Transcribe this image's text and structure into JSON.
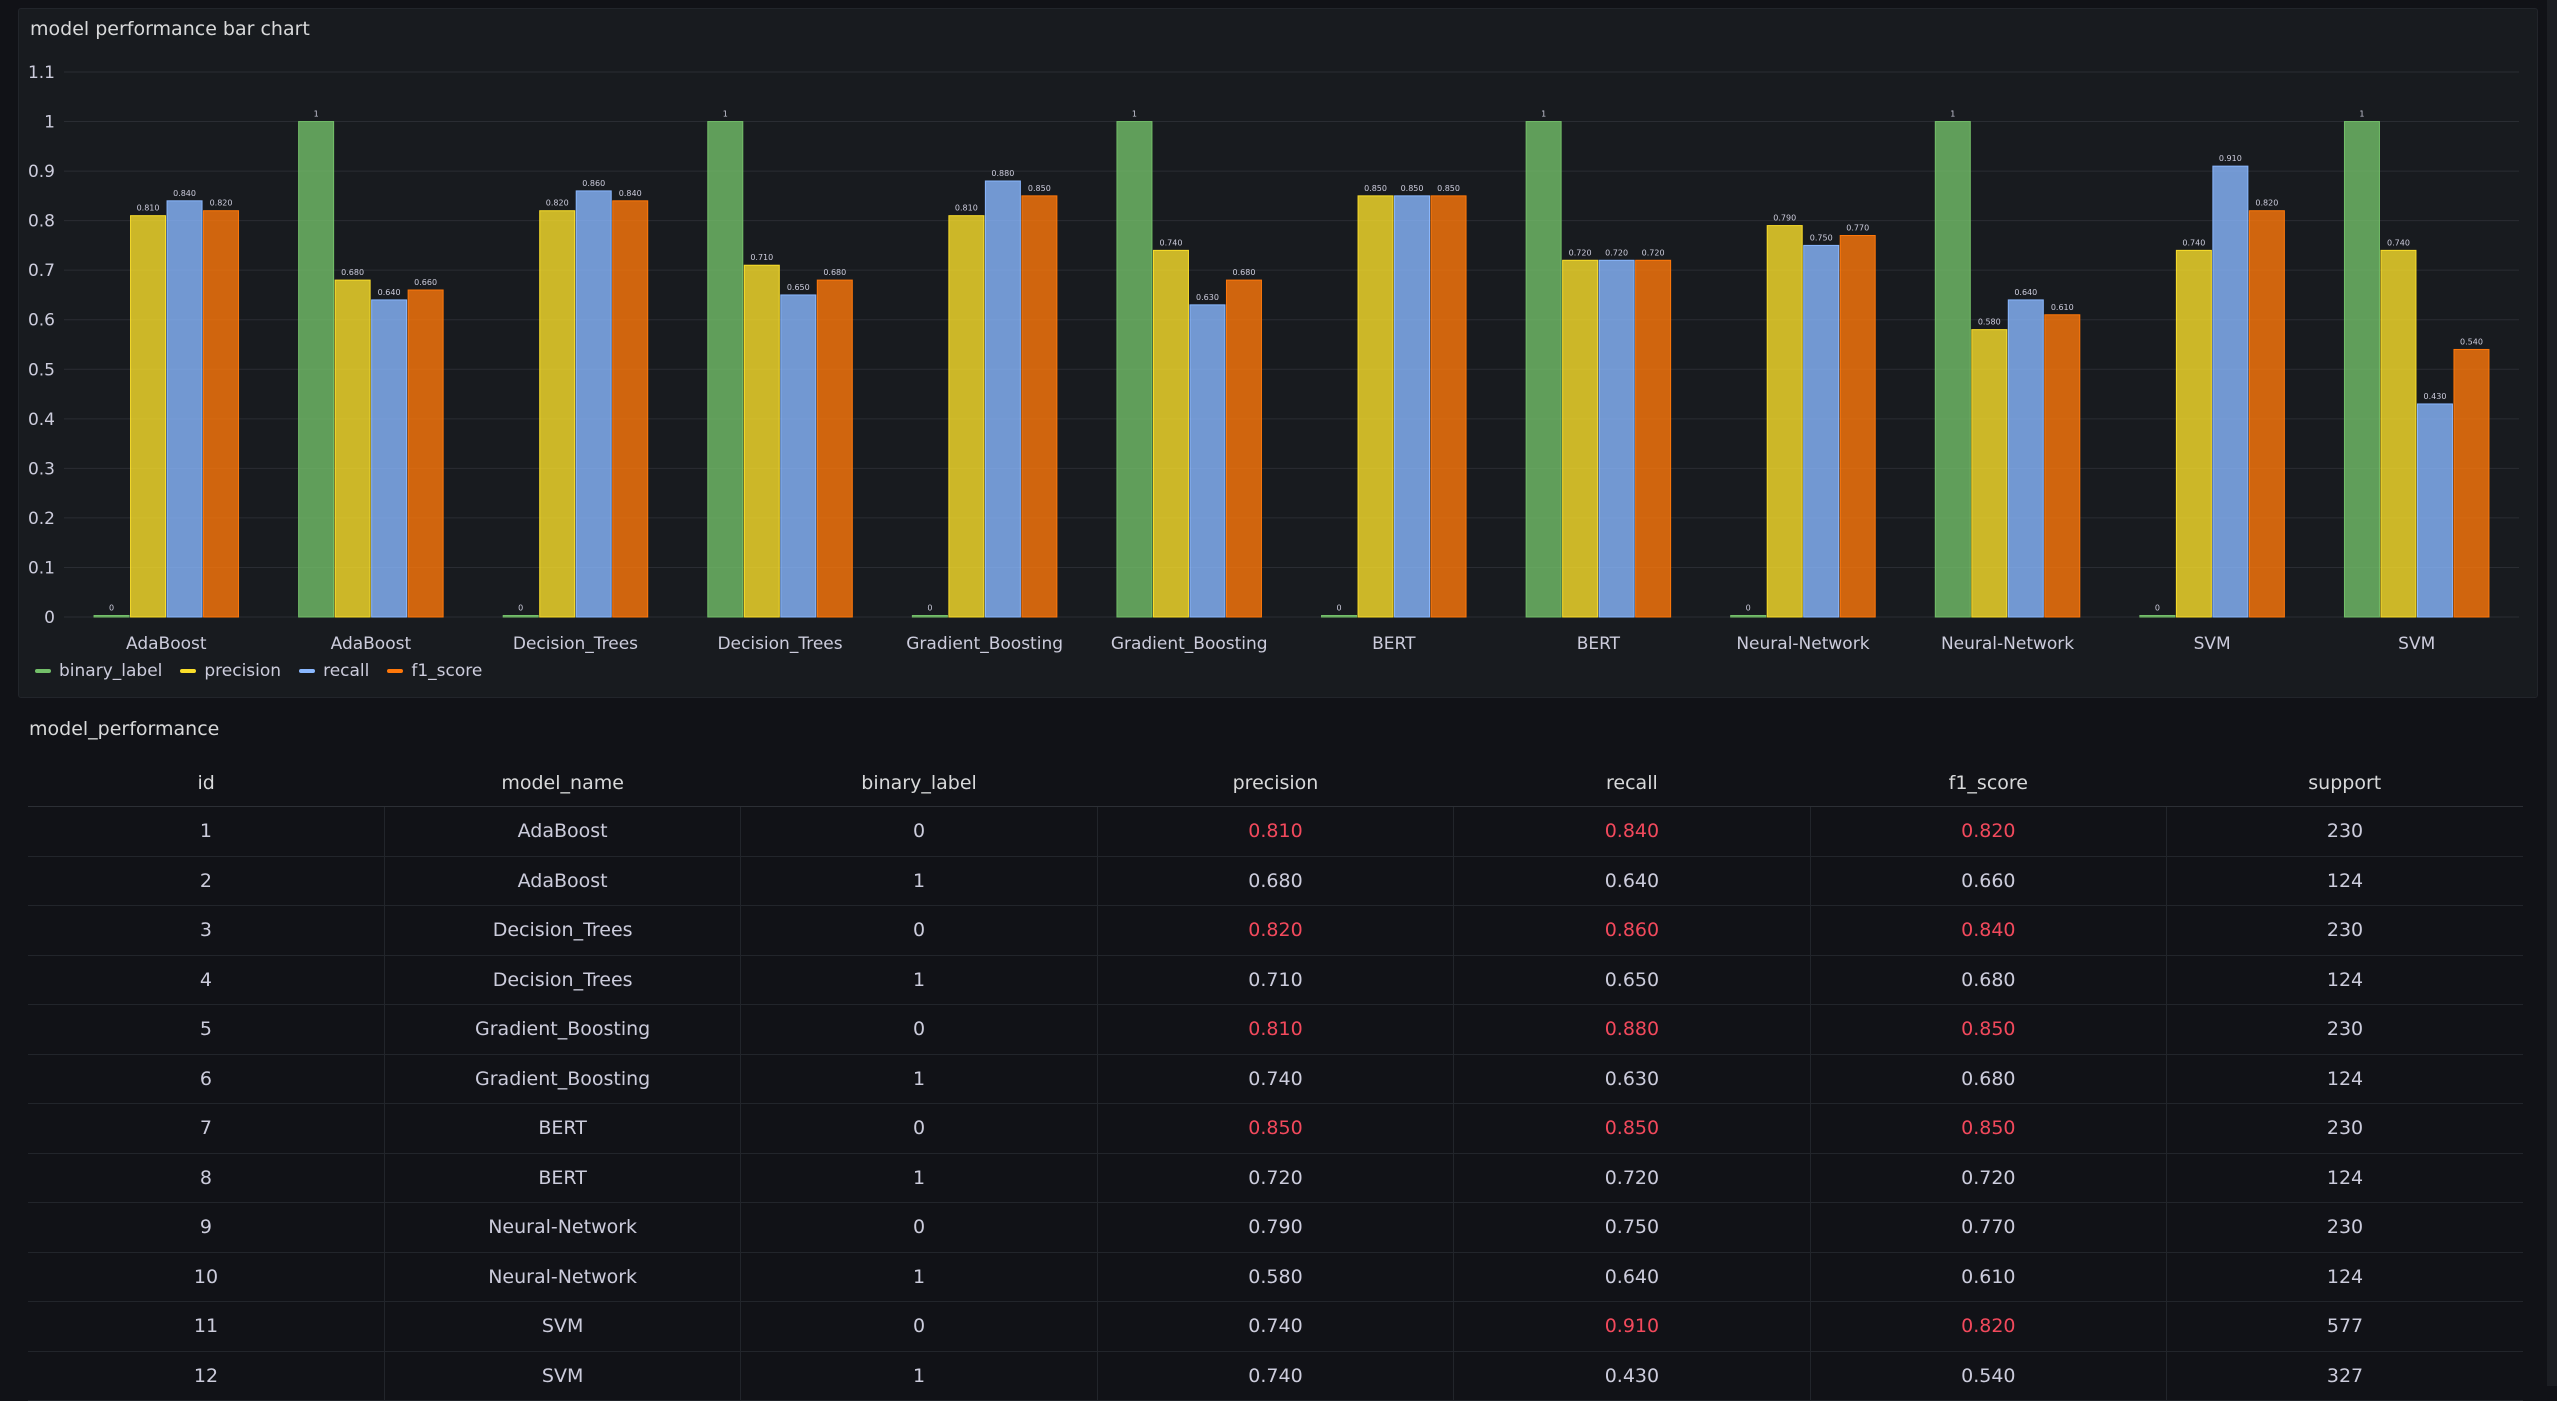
{
  "chart_panel": {
    "title": "model performance bar chart"
  },
  "chart_data": {
    "type": "bar",
    "categories": [
      "AdaBoost",
      "AdaBoost",
      "Decision_Trees",
      "Decision_Trees",
      "Gradient_Boosting",
      "Gradient_Boosting",
      "BERT",
      "BERT",
      "Neural-Network",
      "Neural-Network",
      "SVM",
      "SVM"
    ],
    "series": [
      {
        "name": "binary_label",
        "color": "#73bf69",
        "values": [
          0,
          1,
          0,
          1,
          0,
          1,
          0,
          1,
          0,
          1,
          0,
          1
        ],
        "labels": [
          "0",
          "1",
          "0",
          "1",
          "0",
          "1",
          "0",
          "1",
          "0",
          "1",
          "0",
          "1"
        ]
      },
      {
        "name": "precision",
        "color": "#fade2a",
        "values": [
          0.81,
          0.68,
          0.82,
          0.71,
          0.81,
          0.74,
          0.85,
          0.72,
          0.79,
          0.58,
          0.74,
          0.74
        ],
        "labels": [
          "0.810",
          "0.680",
          "0.820",
          "0.710",
          "0.810",
          "0.740",
          "0.850",
          "0.720",
          "0.790",
          "0.580",
          "0.740",
          "0.740"
        ]
      },
      {
        "name": "recall",
        "color": "#8ab8ff",
        "values": [
          0.84,
          0.64,
          0.86,
          0.65,
          0.88,
          0.63,
          0.85,
          0.72,
          0.75,
          0.64,
          0.91,
          0.43
        ],
        "labels": [
          "0.840",
          "0.640",
          "0.860",
          "0.650",
          "0.880",
          "0.630",
          "0.850",
          "0.720",
          "0.750",
          "0.640",
          "0.910",
          "0.430"
        ]
      },
      {
        "name": "f1_score",
        "color": "#ff780a",
        "values": [
          0.82,
          0.66,
          0.84,
          0.68,
          0.85,
          0.68,
          0.85,
          0.72,
          0.77,
          0.61,
          0.82,
          0.54
        ],
        "labels": [
          "0.820",
          "0.660",
          "0.840",
          "0.680",
          "0.850",
          "0.680",
          "0.850",
          "0.720",
          "0.770",
          "0.610",
          "0.820",
          "0.540"
        ]
      }
    ],
    "ylim": [
      0,
      1.1
    ],
    "yticks": [
      "0",
      "0.1",
      "0.2",
      "0.3",
      "0.4",
      "0.5",
      "0.6",
      "0.7",
      "0.8",
      "0.9",
      "1",
      "1.1"
    ],
    "legend_position": "bottom-left",
    "grid": true
  },
  "table_panel": {
    "title": "model_performance",
    "columns": [
      "id",
      "model_name",
      "binary_label",
      "precision",
      "recall",
      "f1_score",
      "support"
    ],
    "rows": [
      [
        "1",
        "AdaBoost",
        "0",
        "0.810",
        "0.840",
        "0.820",
        "230"
      ],
      [
        "2",
        "AdaBoost",
        "1",
        "0.680",
        "0.640",
        "0.660",
        "124"
      ],
      [
        "3",
        "Decision_Trees",
        "0",
        "0.820",
        "0.860",
        "0.840",
        "230"
      ],
      [
        "4",
        "Decision_Trees",
        "1",
        "0.710",
        "0.650",
        "0.680",
        "124"
      ],
      [
        "5",
        "Gradient_Boosting",
        "0",
        "0.810",
        "0.880",
        "0.850",
        "230"
      ],
      [
        "6",
        "Gradient_Boosting",
        "1",
        "0.740",
        "0.630",
        "0.680",
        "124"
      ],
      [
        "7",
        "BERT",
        "0",
        "0.850",
        "0.850",
        "0.850",
        "230"
      ],
      [
        "8",
        "BERT",
        "1",
        "0.720",
        "0.720",
        "0.720",
        "124"
      ],
      [
        "9",
        "Neural-Network",
        "0",
        "0.790",
        "0.750",
        "0.770",
        "230"
      ],
      [
        "10",
        "Neural-Network",
        "1",
        "0.580",
        "0.640",
        "0.610",
        "124"
      ],
      [
        "11",
        "SVM",
        "0",
        "0.740",
        "0.910",
        "0.820",
        "577"
      ],
      [
        "12",
        "SVM",
        "1",
        "0.740",
        "0.430",
        "0.540",
        "327"
      ]
    ],
    "highlighted": [
      [
        false,
        false,
        false,
        true,
        true,
        true,
        false
      ],
      [
        false,
        false,
        false,
        false,
        false,
        false,
        false
      ],
      [
        false,
        false,
        false,
        true,
        true,
        true,
        false
      ],
      [
        false,
        false,
        false,
        false,
        false,
        false,
        false
      ],
      [
        false,
        false,
        false,
        true,
        true,
        true,
        false
      ],
      [
        false,
        false,
        false,
        false,
        false,
        false,
        false
      ],
      [
        false,
        false,
        false,
        true,
        true,
        true,
        false
      ],
      [
        false,
        false,
        false,
        false,
        false,
        false,
        false
      ],
      [
        false,
        false,
        false,
        false,
        false,
        false,
        false
      ],
      [
        false,
        false,
        false,
        false,
        false,
        false,
        false
      ],
      [
        false,
        false,
        false,
        false,
        true,
        true,
        false
      ],
      [
        false,
        false,
        false,
        false,
        false,
        false,
        false
      ]
    ],
    "highlight_color": "#f2495c"
  }
}
